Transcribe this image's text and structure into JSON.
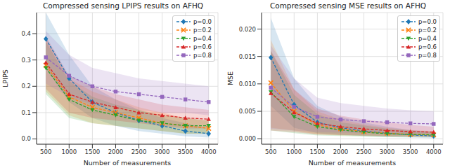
{
  "chart_data": [
    {
      "type": "line",
      "title": "Compressed sensing LPIPS results on AFHQ",
      "xlabel": "Number of measurements",
      "ylabel": "LPIPS",
      "x": [
        500,
        1000,
        1500,
        2000,
        2500,
        3000,
        3500,
        4000
      ],
      "xlim": [
        300,
        4200
      ],
      "xticks": [
        500,
        1000,
        1500,
        2000,
        2500,
        3000,
        3500,
        4000
      ],
      "ylim": [
        -0.02,
        0.48
      ],
      "yticks": [
        {
          "value": 0,
          "label": "0.0"
        },
        {
          "value": 0.1,
          "label": "0.1"
        },
        {
          "value": 0.2,
          "label": "0.2"
        },
        {
          "value": 0.3,
          "label": "0.3"
        },
        {
          "value": 0.4,
          "label": "0.4"
        }
      ],
      "grid": true,
      "legend": "upper right",
      "series": [
        {
          "name": "p=0.0",
          "color": "#1f77b4",
          "marker": "diamond",
          "line_style": "dashed",
          "values": [
            0.38,
            0.23,
            0.14,
            0.1,
            0.07,
            0.05,
            0.03,
            0.02
          ],
          "lower": [
            0.27,
            0.14,
            0.08,
            0.05,
            0.03,
            0.02,
            0.01,
            0.005
          ],
          "upper": [
            0.48,
            0.32,
            0.2,
            0.15,
            0.11,
            0.08,
            0.06,
            0.04
          ]
        },
        {
          "name": "p=0.2",
          "color": "#ff7f0e",
          "marker": "x",
          "line_style": "dashed",
          "values": [
            0.28,
            0.16,
            0.12,
            0.1,
            0.08,
            0.06,
            0.05,
            0.04
          ],
          "lower": [
            0.18,
            0.09,
            0.06,
            0.05,
            0.04,
            0.03,
            0.02,
            0.02
          ],
          "upper": [
            0.38,
            0.23,
            0.18,
            0.15,
            0.12,
            0.1,
            0.08,
            0.07
          ]
        },
        {
          "name": "p=0.4",
          "color": "#2ca02c",
          "marker": "triangle_down",
          "line_style": "dashed",
          "values": [
            0.27,
            0.15,
            0.11,
            0.09,
            0.07,
            0.06,
            0.05,
            0.05
          ],
          "lower": [
            0.17,
            0.08,
            0.06,
            0.05,
            0.04,
            0.03,
            0.02,
            0.02
          ],
          "upper": [
            0.37,
            0.22,
            0.16,
            0.13,
            0.11,
            0.09,
            0.08,
            0.07
          ]
        },
        {
          "name": "p=0.6",
          "color": "#d62728",
          "marker": "triangle",
          "line_style": "dashed",
          "values": [
            0.29,
            0.17,
            0.14,
            0.12,
            0.1,
            0.09,
            0.08,
            0.075
          ],
          "lower": [
            0.19,
            0.1,
            0.08,
            0.07,
            0.06,
            0.05,
            0.04,
            0.04
          ],
          "upper": [
            0.39,
            0.24,
            0.2,
            0.17,
            0.15,
            0.13,
            0.12,
            0.11
          ]
        },
        {
          "name": "p=0.8",
          "color": "#9467bd",
          "marker": "square",
          "line_style": "dashed",
          "values": [
            0.31,
            0.24,
            0.2,
            0.18,
            0.17,
            0.16,
            0.15,
            0.14
          ],
          "lower": [
            0.21,
            0.16,
            0.13,
            0.12,
            0.11,
            0.1,
            0.1,
            0.09
          ],
          "upper": [
            0.41,
            0.32,
            0.27,
            0.25,
            0.23,
            0.22,
            0.21,
            0.2
          ]
        }
      ]
    },
    {
      "type": "line",
      "title": "Compressed sensing MSE results on AFHQ",
      "xlabel": "Number of measurements",
      "ylabel": "MSE",
      "x": [
        500,
        1000,
        1500,
        2000,
        2500,
        3000,
        3500,
        4000
      ],
      "xlim": [
        300,
        4200
      ],
      "xticks": [
        500,
        1000,
        1500,
        2000,
        2500,
        3000,
        3500,
        4000
      ],
      "ylim": [
        -0.001,
        0.023
      ],
      "yticks": [
        {
          "value": 0,
          "label": "0.000"
        },
        {
          "value": 0.005,
          "label": "0.005"
        },
        {
          "value": 0.01,
          "label": "0.010"
        },
        {
          "value": 0.015,
          "label": "0.015"
        },
        {
          "value": 0.02,
          "label": "0.020"
        }
      ],
      "grid": true,
      "legend": "upper right",
      "series": [
        {
          "name": "p=0.0",
          "color": "#1f77b4",
          "marker": "diamond",
          "line_style": "dashed",
          "values": [
            0.0148,
            0.0062,
            0.003,
            0.002,
            0.0014,
            0.001,
            0.0007,
            0.0005
          ],
          "lower": [
            0.006,
            0.002,
            0.001,
            0.0007,
            0.0005,
            0.0003,
            0.0002,
            0.0001
          ],
          "upper": [
            0.022,
            0.011,
            0.006,
            0.004,
            0.003,
            0.0022,
            0.0016,
            0.0012
          ]
        },
        {
          "name": "p=0.2",
          "color": "#ff7f0e",
          "marker": "x",
          "line_style": "dashed",
          "values": [
            0.0102,
            0.005,
            0.0025,
            0.0018,
            0.0013,
            0.001,
            0.0008,
            0.0007
          ],
          "lower": [
            0.002,
            0.0015,
            0.0008,
            0.0006,
            0.0005,
            0.0004,
            0.0003,
            0.0003
          ],
          "upper": [
            0.018,
            0.009,
            0.005,
            0.0035,
            0.0026,
            0.002,
            0.0016,
            0.0014
          ]
        },
        {
          "name": "p=0.4",
          "color": "#2ca02c",
          "marker": "triangle_down",
          "line_style": "dashed",
          "values": [
            0.0085,
            0.004,
            0.0022,
            0.0016,
            0.0012,
            0.0009,
            0.0008,
            0.0007
          ],
          "lower": [
            0.0015,
            0.001,
            0.0006,
            0.0005,
            0.0004,
            0.0003,
            0.0003,
            0.0003
          ],
          "upper": [
            0.016,
            0.008,
            0.0045,
            0.003,
            0.0024,
            0.0018,
            0.0015,
            0.0013
          ]
        },
        {
          "name": "p=0.6",
          "color": "#d62728",
          "marker": "triangle",
          "line_style": "dashed",
          "values": [
            0.0083,
            0.0048,
            0.0028,
            0.0022,
            0.0018,
            0.0015,
            0.0013,
            0.0012
          ],
          "lower": [
            0.0015,
            0.0012,
            0.0008,
            0.0007,
            0.0006,
            0.0005,
            0.0005,
            0.0004
          ],
          "upper": [
            0.016,
            0.009,
            0.0055,
            0.0042,
            0.0035,
            0.003,
            0.0025,
            0.0022
          ]
        },
        {
          "name": "p=0.8",
          "color": "#9467bd",
          "marker": "square",
          "line_style": "dashed",
          "values": [
            0.0093,
            0.0058,
            0.004,
            0.0035,
            0.0032,
            0.003,
            0.0028,
            0.0027
          ],
          "lower": [
            0.0018,
            0.0015,
            0.0012,
            0.0011,
            0.001,
            0.001,
            0.0009,
            0.0009
          ],
          "upper": [
            0.017,
            0.011,
            0.0075,
            0.0065,
            0.006,
            0.0055,
            0.0052,
            0.005
          ]
        }
      ]
    }
  ]
}
